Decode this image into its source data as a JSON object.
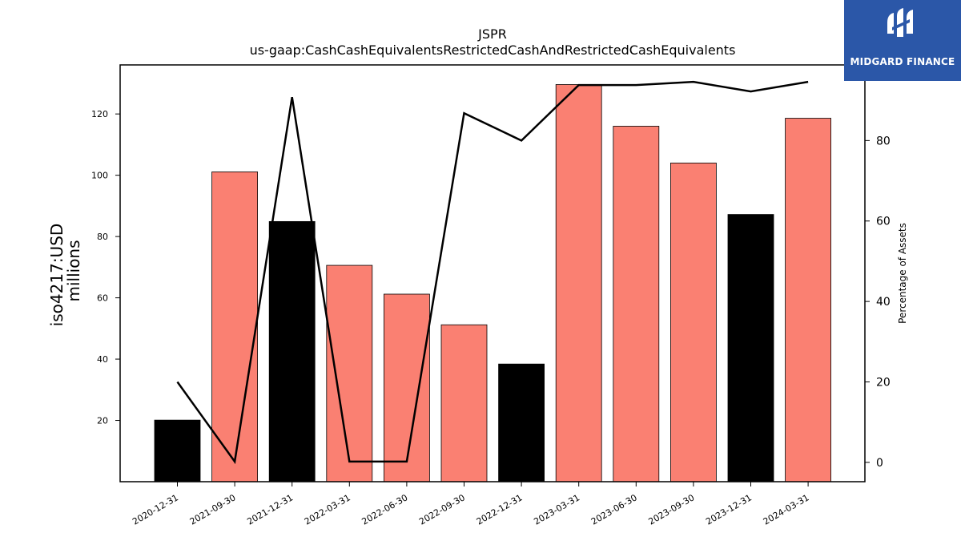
{
  "chart_data": {
    "type": "bar",
    "title": "JSPR",
    "subtitle": "us-gaap:CashCashEquivalentsRestrictedCashAndRestrictedCashEquivalents",
    "ylabel": "iso4217:USD",
    "ylabel_unit": "millions",
    "y2label": "Percentage of Assets",
    "categories": [
      "2020-12-31",
      "2021-09-30",
      "2021-12-31",
      "2022-03-31",
      "2022-06-30",
      "2022-09-30",
      "2022-12-31",
      "2023-03-31",
      "2023-06-30",
      "2023-09-30",
      "2023-12-31",
      "2024-03-31"
    ],
    "series": [
      {
        "type": "bar",
        "values": [
          20.1,
          101.1,
          84.9,
          70.6,
          61.2,
          51.2,
          38.4,
          129.6,
          116.0,
          104.0,
          87.2,
          118.6
        ],
        "colors": [
          "#000000",
          "#fa8072",
          "#000000",
          "#fa8072",
          "#fa8072",
          "#fa8072",
          "#000000",
          "#fa8072",
          "#fa8072",
          "#fa8072",
          "#000000",
          "#fa8072"
        ]
      },
      {
        "type": "line",
        "axis": "right",
        "color": "#000000",
        "values": [
          20.0,
          0.2,
          90.8,
          0.2,
          0.2,
          86.8,
          80.0,
          93.8,
          93.8,
          94.6,
          92.2,
          94.6
        ]
      }
    ],
    "ylim": [
      0,
      136
    ],
    "y2lim": [
      -4.8,
      98.8
    ],
    "yticks": [
      20,
      40,
      60,
      80,
      100,
      120
    ],
    "y2ticks": [
      0,
      20,
      40,
      60,
      80
    ],
    "grid": false,
    "legend": "none"
  },
  "logo": {
    "text": "MIDGARD FINANCE",
    "background": "#2b57a8"
  }
}
